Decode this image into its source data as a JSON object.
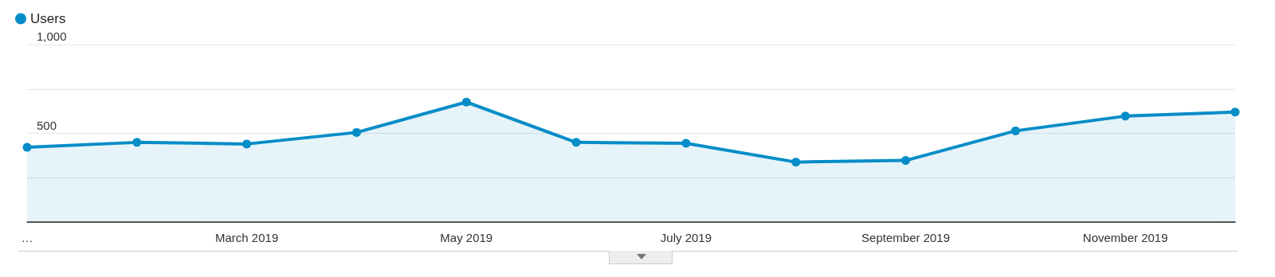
{
  "chart_data": {
    "type": "area",
    "categories": [
      "…",
      null,
      "March 2019",
      null,
      "May 2019",
      null,
      "July 2019",
      null,
      "September 2019",
      null,
      "November 2019",
      null
    ],
    "series": [
      {
        "name": "Users",
        "color": "#058dc7",
        "values": [
          421,
          449,
          440,
          505,
          676,
          449,
          444,
          338,
          347,
          514,
          597,
          620
        ]
      }
    ],
    "ylim": [
      0,
      1000
    ],
    "yticks": [
      {
        "value": 0,
        "label": null
      },
      {
        "value": 250,
        "label": null
      },
      {
        "value": 500,
        "label": "500"
      },
      {
        "value": 750,
        "label": null
      },
      {
        "value": 1000,
        "label": "1,000"
      }
    ],
    "grid": "y",
    "legend": "top left",
    "marker": "circle",
    "line_style": "solid"
  }
}
